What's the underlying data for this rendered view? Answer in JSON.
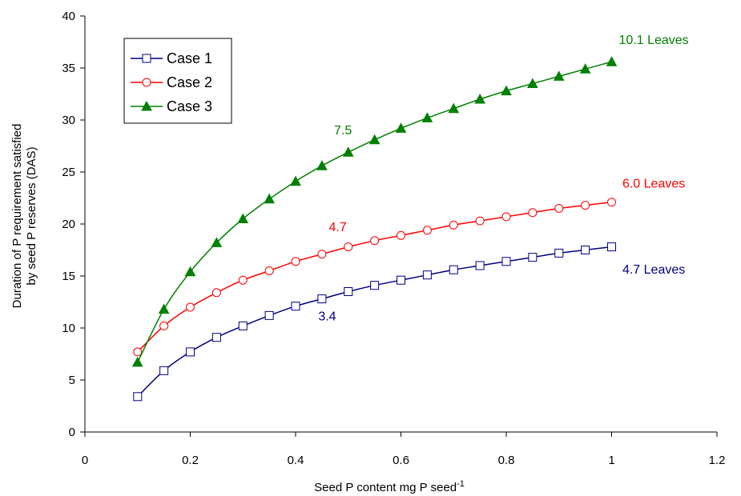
{
  "chart_data": {
    "type": "line",
    "xlabel": "Seed P content mg P seed",
    "xlabel_superscript": "-1",
    "ylabel_line1": "Duration of P requirement satisfied",
    "ylabel_line2": "by seed P reserves (DAS)",
    "xlim": [
      0,
      1.2
    ],
    "ylim": [
      0,
      40
    ],
    "x_ticks": [
      "0",
      "0.2",
      "0.4",
      "0.6",
      "0.8",
      "1",
      "1.2"
    ],
    "y_ticks": [
      "0",
      "5",
      "10",
      "15",
      "20",
      "25",
      "30",
      "35",
      "40"
    ],
    "grid": false,
    "legend_position": "top-left",
    "x": [
      0.1,
      0.15,
      0.2,
      0.25,
      0.3,
      0.35,
      0.4,
      0.45,
      0.5,
      0.55,
      0.6,
      0.65,
      0.7,
      0.75,
      0.8,
      0.85,
      0.9,
      0.95,
      1.0
    ],
    "series": [
      {
        "name": "Case 1",
        "color": "#000080",
        "marker": "open-square",
        "values": [
          3.4,
          5.9,
          7.7,
          9.1,
          10.2,
          11.2,
          12.1,
          12.8,
          13.5,
          14.1,
          14.6,
          15.1,
          15.6,
          16.0,
          16.4,
          16.8,
          17.2,
          17.5,
          17.8
        ]
      },
      {
        "name": "Case 2",
        "color": "#ff0000",
        "marker": "open-circle",
        "values": [
          7.7,
          10.2,
          12.0,
          13.4,
          14.6,
          15.5,
          16.4,
          17.1,
          17.8,
          18.4,
          18.9,
          19.4,
          19.9,
          20.3,
          20.7,
          21.1,
          21.5,
          21.8,
          22.1
        ]
      },
      {
        "name": "Case 3",
        "color": "#008000",
        "marker": "filled-triangle",
        "values": [
          6.7,
          11.8,
          15.4,
          18.2,
          20.5,
          22.4,
          24.1,
          25.6,
          26.9,
          28.1,
          29.2,
          30.2,
          31.1,
          32.0,
          32.8,
          33.5,
          34.2,
          34.9,
          35.6
        ]
      }
    ],
    "annotations": [
      {
        "text": "10.1 Leaves",
        "color": "#008000",
        "x": 1.08,
        "y": 37.7
      },
      {
        "text": "7.5",
        "color": "#008000",
        "x": 0.49,
        "y": 29.0
      },
      {
        "text": "6.0 Leaves",
        "color": "#ff0000",
        "x": 1.08,
        "y": 23.9
      },
      {
        "text": "4.7",
        "color": "#ff0000",
        "x": 0.48,
        "y": 19.7
      },
      {
        "text": "4.7 Leaves",
        "color": "#000080",
        "x": 1.08,
        "y": 15.6
      },
      {
        "text": "3.4",
        "color": "#000080",
        "x": 0.46,
        "y": 11.1
      }
    ]
  }
}
